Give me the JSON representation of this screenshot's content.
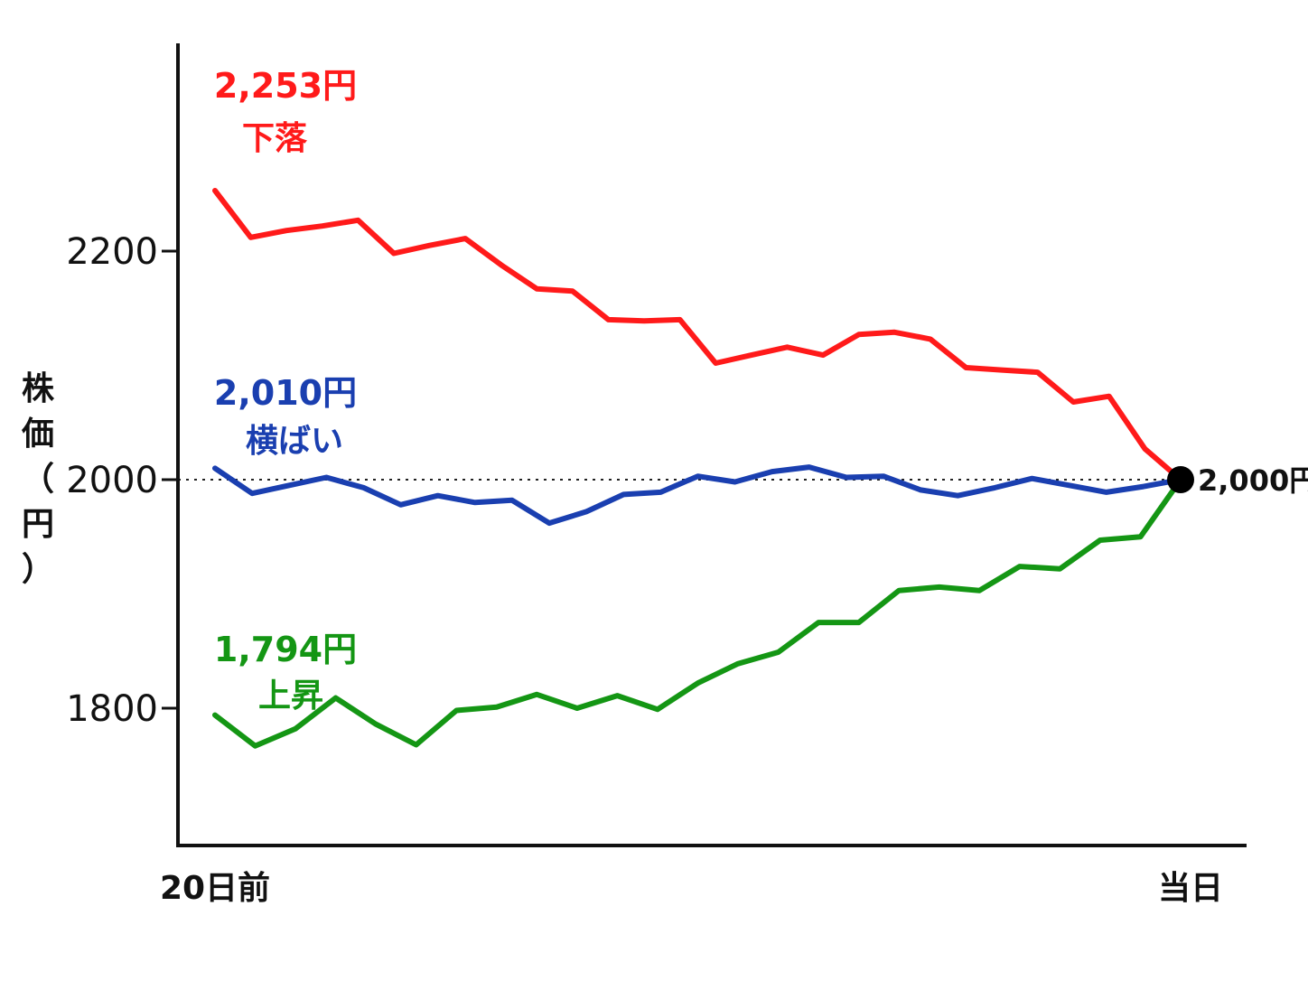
{
  "chart_data": {
    "type": "line",
    "xlabel": "",
    "ylabel": "株価（円）",
    "x_tick_labels": [
      "20日前",
      "当日"
    ],
    "y_ticks": [
      1800,
      2000,
      2200
    ],
    "ylim": [
      1700,
      2400
    ],
    "reference_line": {
      "y": 2000,
      "style": "dotted"
    },
    "end_point": {
      "value": 2000,
      "label": "2,000円"
    },
    "series": [
      {
        "name": "下落",
        "value_label": "2,253円",
        "color": "#ff1a1a",
        "values": [
          2253,
          2212,
          2218,
          2222,
          2227,
          2198,
          2205,
          2211,
          2188,
          2167,
          2165,
          2140,
          2139,
          2140,
          2102,
          2109,
          2116,
          2109,
          2127,
          2129,
          2123,
          2098,
          2096,
          2094,
          2068,
          2073,
          2027,
          2000
        ]
      },
      {
        "name": "横ばい",
        "value_label": "2,010円",
        "color": "#1a3fb0",
        "values": [
          2010,
          1988,
          1995,
          2002,
          1993,
          1978,
          1986,
          1980,
          1982,
          1962,
          1972,
          1987,
          1989,
          2003,
          1998,
          2007,
          2011,
          2002,
          2003,
          1991,
          1986,
          1993,
          2001,
          1995,
          1989,
          1994,
          2000
        ]
      },
      {
        "name": "上昇",
        "value_label": "1,794円",
        "color": "#149614",
        "values": [
          1794,
          1767,
          1782,
          1809,
          1786,
          1768,
          1798,
          1801,
          1812,
          1800,
          1811,
          1799,
          1822,
          1839,
          1849,
          1875,
          1875,
          1903,
          1906,
          1903,
          1924,
          1922,
          1947,
          1950,
          2000
        ]
      }
    ]
  }
}
